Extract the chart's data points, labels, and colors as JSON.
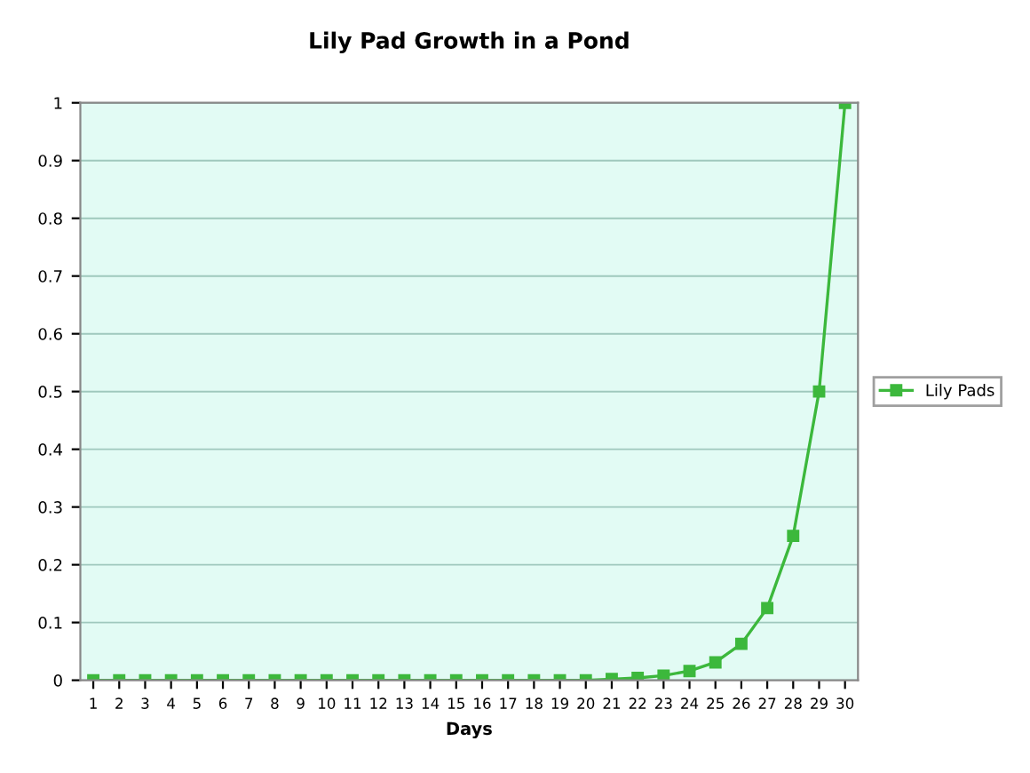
{
  "chart_data": {
    "type": "line",
    "title": "Lily Pad Growth in a Pond",
    "xlabel": "Days",
    "categories": [
      "1",
      "2",
      "3",
      "4",
      "5",
      "6",
      "7",
      "8",
      "9",
      "10",
      "11",
      "12",
      "13",
      "14",
      "15",
      "16",
      "17",
      "18",
      "19",
      "20",
      "21",
      "22",
      "23",
      "24",
      "25",
      "26",
      "27",
      "28",
      "29",
      "30"
    ],
    "series": [
      {
        "name": "Lily Pads",
        "color": "#3cb83c",
        "values": [
          0,
          0,
          0,
          0,
          0,
          0,
          0,
          0,
          0,
          0,
          0,
          0,
          0,
          0,
          0,
          0,
          0,
          0,
          0,
          0,
          0.002,
          0.004,
          0.008,
          0.016,
          0.031,
          0.063,
          0.125,
          0.25,
          0.5,
          1
        ]
      }
    ],
    "ylim": [
      0,
      1
    ],
    "yticks": [
      0,
      0.1,
      0.2,
      0.3,
      0.4,
      0.5,
      0.6,
      0.7,
      0.8,
      0.9,
      1
    ],
    "grid": "y",
    "legend": "right",
    "marker": "square",
    "line_style": "solid"
  }
}
